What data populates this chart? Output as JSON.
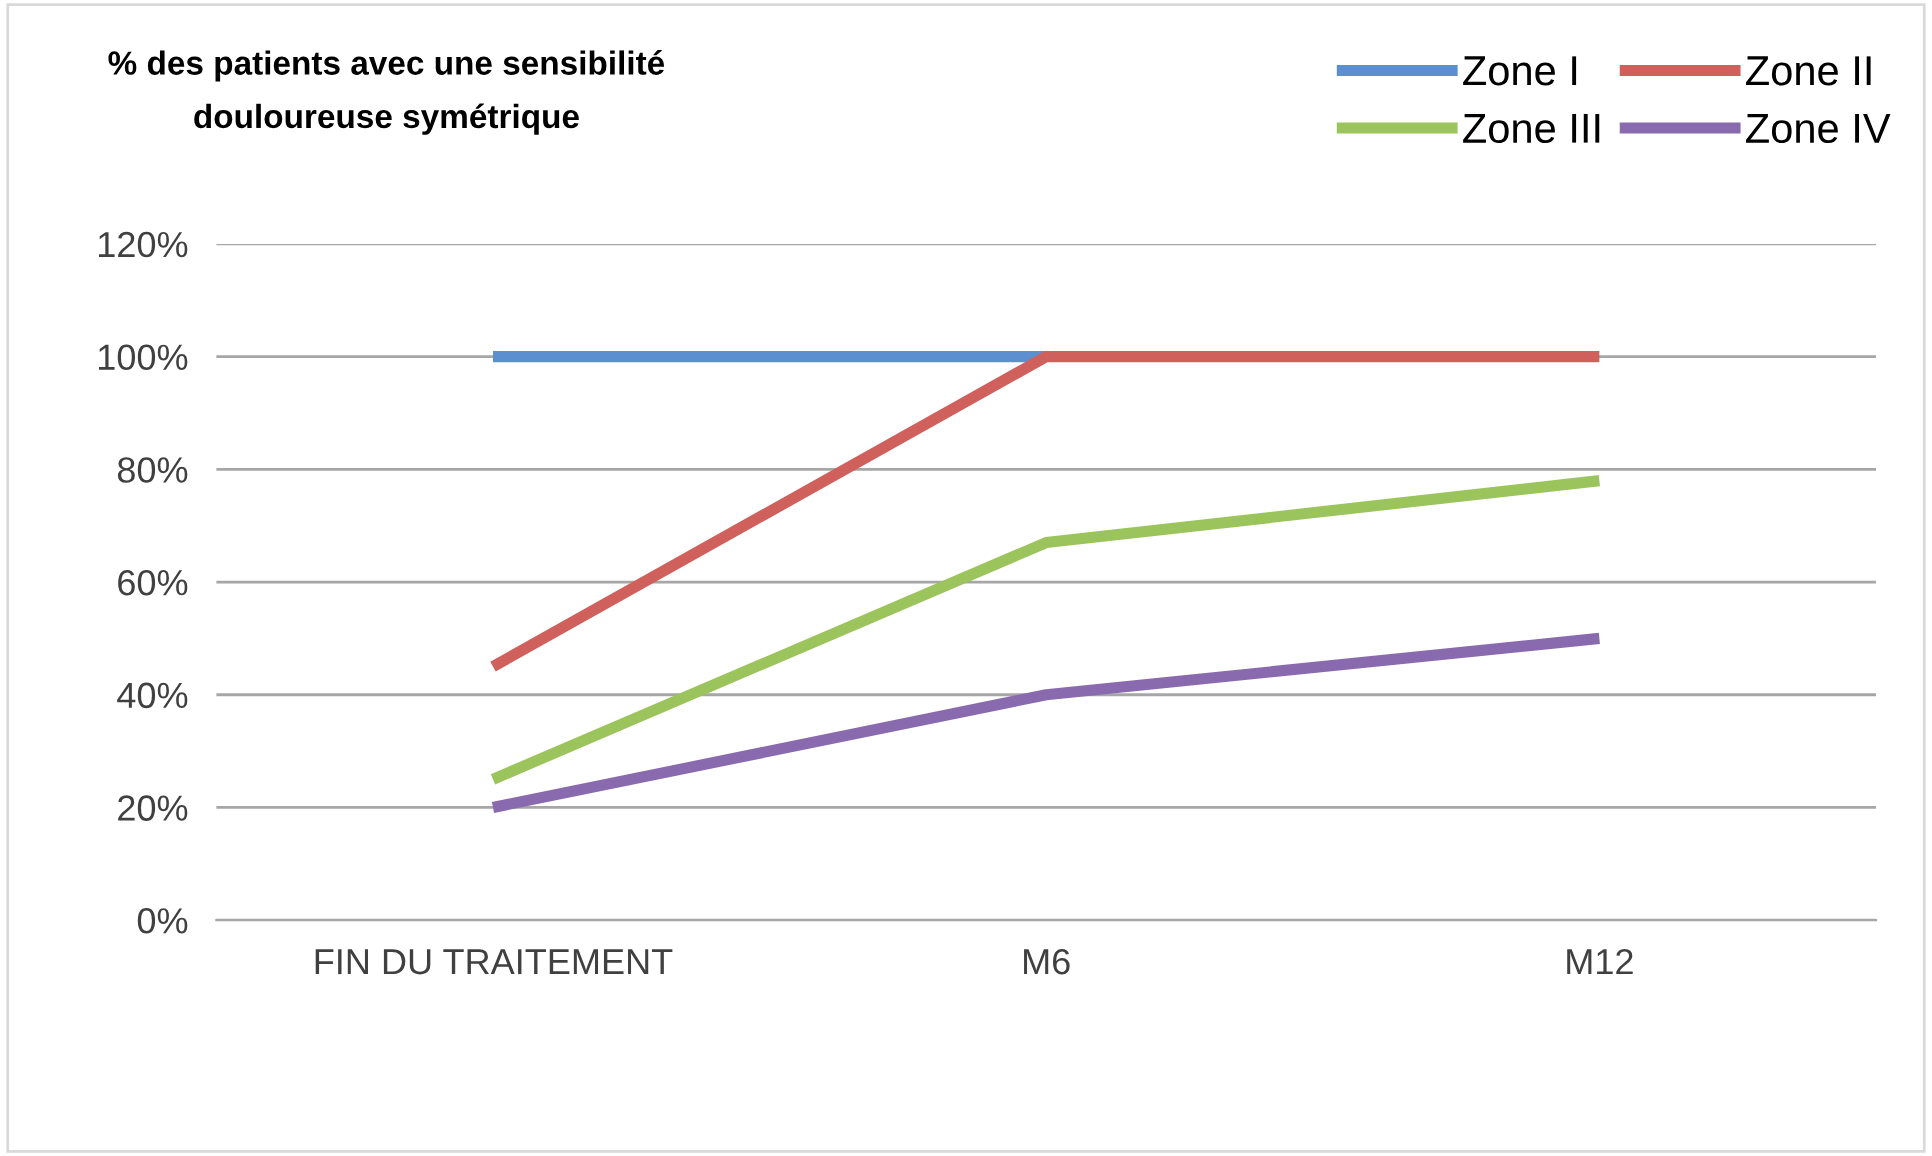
{
  "chart_data": {
    "type": "line",
    "title": "% des patients avec une sensibilité\ndouloureuse symétrique",
    "categories": [
      "FIN DU TRAITEMENT",
      "M6",
      "M12"
    ],
    "series": [
      {
        "name": "Zone I",
        "color": "#5b8fd0",
        "values": [
          100,
          100,
          null
        ]
      },
      {
        "name": "Zone II",
        "color": "#d0605c",
        "values": [
          45,
          100,
          100
        ]
      },
      {
        "name": "Zone III",
        "color": "#9bc55c",
        "values": [
          25,
          67,
          78
        ]
      },
      {
        "name": "Zone IV",
        "color": "#8a6aae",
        "values": [
          20,
          40,
          50
        ]
      }
    ],
    "ylim": [
      0,
      120
    ],
    "yticks": [
      {
        "value": 0,
        "label": "0%"
      },
      {
        "value": 20,
        "label": "20%"
      },
      {
        "value": 40,
        "label": "40%"
      },
      {
        "value": 60,
        "label": "60%"
      },
      {
        "value": 80,
        "label": "80%"
      },
      {
        "value": 100,
        "label": "100%"
      },
      {
        "value": 120,
        "label": "120%"
      }
    ],
    "grid": "y",
    "legend": "top right",
    "marker": "none",
    "line_style": "solid"
  }
}
